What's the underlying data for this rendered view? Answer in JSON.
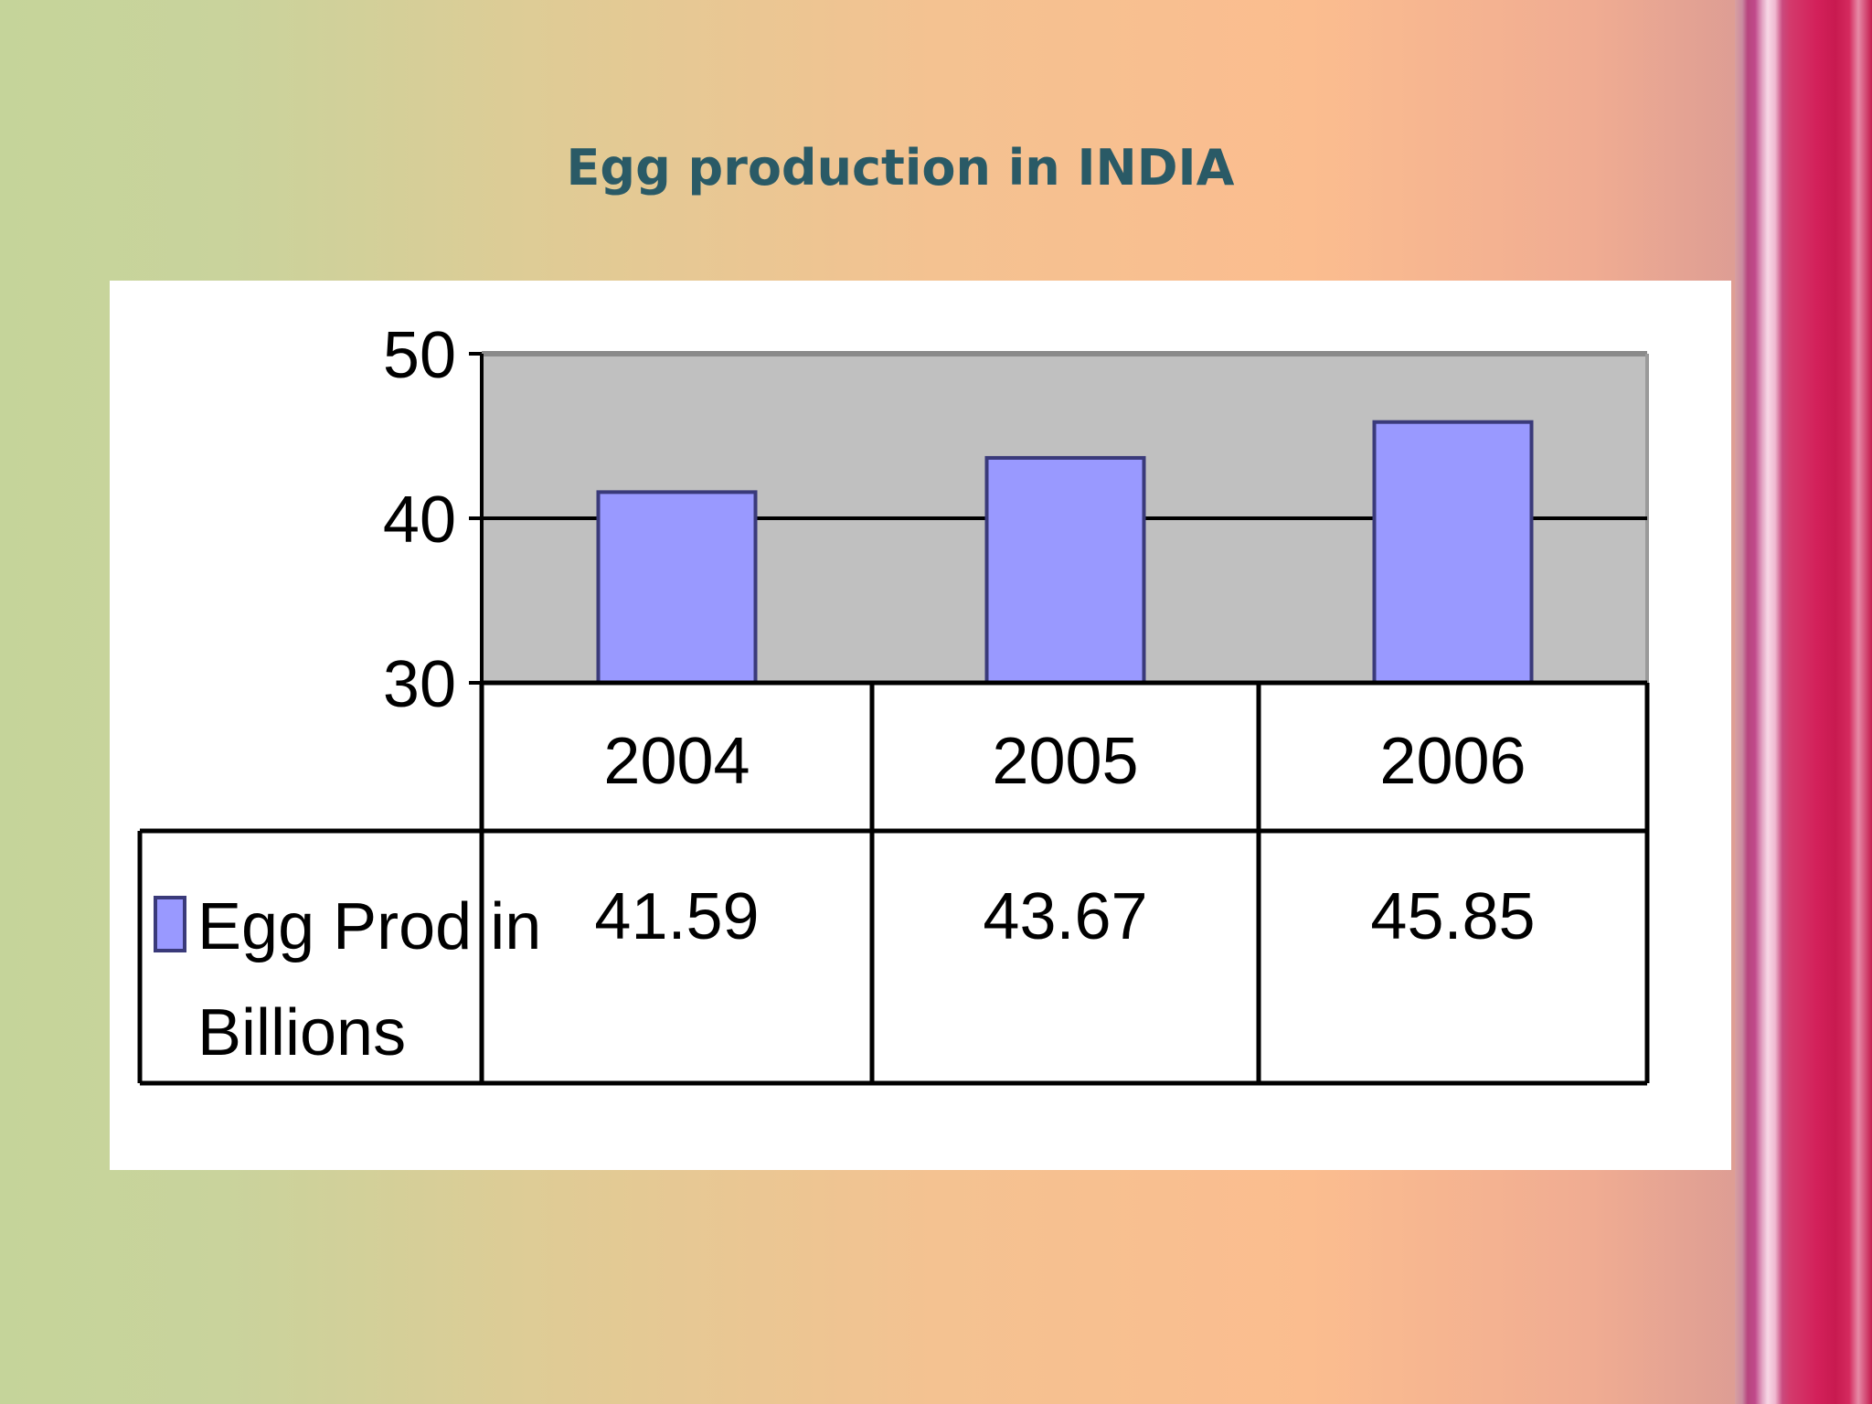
{
  "slide": {
    "title": "Egg production in INDIA"
  },
  "colors": {
    "bar": "#9999ff",
    "bar_edge": "#3a3a7a",
    "plot_bg": "#c0c0c0"
  },
  "chart_data": {
    "type": "bar",
    "categories": [
      "2004",
      "2005",
      "2006"
    ],
    "series": [
      {
        "name": "Egg Prod in Billions",
        "values": [
          41.59,
          43.67,
          45.85
        ]
      }
    ],
    "value_labels": [
      "41.59",
      "43.67",
      "45.85"
    ],
    "legend_lines": [
      "Egg Prod in",
      "Billions"
    ],
    "ylim": [
      30,
      50
    ],
    "yticks": [
      30,
      40,
      50
    ],
    "grid": true,
    "legend": "data-table"
  }
}
